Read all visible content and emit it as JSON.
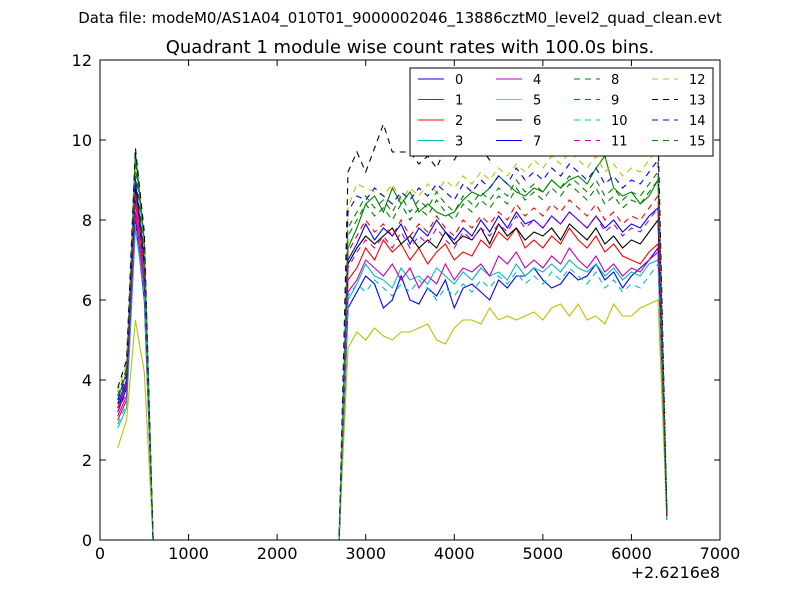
{
  "figure": {
    "suptitle": "Data file: modeM0/AS1A04_010T01_9000002046_13886cztM0_level2_quad_clean.evt"
  },
  "chart_data": {
    "type": "line",
    "title": "Quadrant 1 module wise count rates with 100.0s bins.",
    "xlabel": "",
    "ylabel": "",
    "x_offset_label": "+2.6216e8",
    "xlim": [
      0,
      7000
    ],
    "ylim": [
      0,
      12
    ],
    "x_ticks": [
      0,
      1000,
      2000,
      3000,
      4000,
      5000,
      6000,
      7000
    ],
    "x_tick_labels": [
      "0",
      "1000",
      "2000",
      "3000",
      "4000",
      "5000",
      "6000",
      "7000"
    ],
    "y_ticks": [
      0,
      2,
      4,
      6,
      8,
      10,
      12
    ],
    "y_tick_labels": [
      "0",
      "2",
      "4",
      "6",
      "8",
      "10",
      "12"
    ],
    "grid": false,
    "legend_position": "top-right",
    "legend_columns": 4,
    "x": [
      200,
      300,
      400,
      500,
      600,
      700,
      800,
      900,
      1000,
      1100,
      1200,
      1300,
      1400,
      1500,
      1600,
      1700,
      1800,
      1900,
      2000,
      2100,
      2200,
      2300,
      2400,
      2500,
      2600,
      2700,
      2800,
      2900,
      3000,
      3100,
      3200,
      3300,
      3400,
      3500,
      3600,
      3700,
      3800,
      3900,
      4000,
      4100,
      4200,
      4300,
      4400,
      4500,
      4600,
      4700,
      4800,
      4900,
      5000,
      5100,
      5200,
      5300,
      5400,
      5500,
      5600,
      5700,
      5800,
      5900,
      6000,
      6100,
      6200,
      6300,
      6400
    ],
    "series": [
      {
        "name": "0",
        "color": "#0000ff",
        "dash": "solid",
        "values": [
          3.2,
          3.8,
          8.0,
          6.0,
          0,
          0,
          0,
          0,
          0,
          0,
          0,
          0,
          0,
          0,
          0,
          0,
          0,
          0,
          0,
          0,
          0,
          0,
          0,
          0,
          0,
          0,
          5.8,
          6.2,
          6.6,
          6.4,
          5.8,
          6.0,
          6.6,
          6.0,
          5.9,
          6.3,
          6.1,
          6.5,
          5.8,
          6.3,
          6.4,
          6.2,
          6.0,
          6.5,
          6.3,
          6.6,
          6.6,
          6.8,
          6.5,
          6.3,
          6.4,
          6.7,
          6.5,
          6.6,
          6.9,
          6.5,
          6.7,
          6.3,
          6.6,
          6.8,
          7.0,
          7.3,
          0.5
        ]
      },
      {
        "name": "1",
        "color": "#008000",
        "dash": "solid",
        "values": [
          3.5,
          4.2,
          9.7,
          7.5,
          0,
          0,
          0,
          0,
          0,
          0,
          0,
          0,
          0,
          0,
          0,
          0,
          0,
          0,
          0,
          0,
          0,
          0,
          0,
          0,
          0,
          0,
          7.3,
          7.8,
          8.4,
          8.6,
          8.2,
          8.8,
          8.4,
          8.7,
          8.2,
          8.4,
          8.2,
          8.1,
          8.2,
          8.5,
          8.7,
          8.6,
          8.8,
          9.1,
          8.9,
          8.7,
          8.6,
          8.8,
          8.7,
          9.0,
          8.8,
          9.0,
          9.1,
          8.9,
          9.3,
          9.6,
          8.8,
          8.6,
          8.7,
          8.4,
          8.6,
          9.0,
          0.6
        ]
      },
      {
        "name": "2",
        "color": "#ff0000",
        "dash": "solid",
        "values": [
          3.0,
          3.5,
          8.5,
          6.5,
          0,
          0,
          0,
          0,
          0,
          0,
          0,
          0,
          0,
          0,
          0,
          0,
          0,
          0,
          0,
          0,
          0,
          0,
          0,
          0,
          0,
          0,
          6.5,
          6.8,
          7.3,
          7.0,
          7.5,
          7.2,
          7.4,
          7.0,
          7.3,
          6.9,
          7.2,
          7.4,
          7.0,
          7.2,
          7.1,
          7.5,
          7.3,
          7.7,
          7.5,
          7.8,
          7.3,
          7.5,
          7.3,
          7.6,
          7.4,
          7.8,
          7.5,
          7.3,
          7.6,
          7.2,
          7.4,
          7.1,
          7.0,
          6.9,
          7.2,
          7.4,
          0.6
        ]
      },
      {
        "name": "3",
        "color": "#00bfbf",
        "dash": "solid",
        "values": [
          2.8,
          3.3,
          7.8,
          6.2,
          0,
          0,
          0,
          0,
          0,
          0,
          0,
          0,
          0,
          0,
          0,
          0,
          0,
          0,
          0,
          0,
          0,
          0,
          0,
          0,
          0,
          0,
          6.0,
          6.4,
          6.9,
          6.6,
          6.5,
          6.3,
          6.8,
          6.5,
          6.6,
          6.4,
          6.8,
          6.6,
          6.4,
          6.7,
          6.5,
          6.8,
          6.6,
          6.7,
          6.5,
          6.9,
          6.6,
          6.8,
          6.7,
          6.9,
          6.7,
          7.0,
          6.8,
          6.7,
          6.9,
          6.6,
          6.8,
          6.5,
          6.7,
          6.6,
          6.9,
          7.0,
          0.5
        ]
      },
      {
        "name": "4",
        "color": "#bf00bf",
        "dash": "solid",
        "values": [
          3.1,
          3.6,
          8.2,
          6.3,
          0,
          0,
          0,
          0,
          0,
          0,
          0,
          0,
          0,
          0,
          0,
          0,
          0,
          0,
          0,
          0,
          0,
          0,
          0,
          0,
          0,
          0,
          6.2,
          6.5,
          7.0,
          6.8,
          6.6,
          6.9,
          6.5,
          6.8,
          6.3,
          6.6,
          6.4,
          6.9,
          6.5,
          6.8,
          6.7,
          6.9,
          6.6,
          7.1,
          6.9,
          7.2,
          6.8,
          7.0,
          6.8,
          7.1,
          6.9,
          7.3,
          7.0,
          6.8,
          7.1,
          6.7,
          6.9,
          6.6,
          6.8,
          6.7,
          7.0,
          7.2,
          0.6
        ]
      },
      {
        "name": "5",
        "color": "#bfbf00",
        "dash": "solid",
        "values": [
          2.3,
          3.0,
          5.5,
          4.2,
          0,
          0,
          0,
          0,
          0,
          0,
          0,
          0,
          0,
          0,
          0,
          0,
          0,
          0,
          0,
          0,
          0,
          0,
          0,
          0,
          0,
          0,
          4.8,
          5.2,
          5.0,
          5.3,
          5.1,
          5.0,
          5.2,
          5.2,
          5.3,
          5.4,
          5.0,
          4.9,
          5.3,
          5.5,
          5.5,
          5.4,
          5.8,
          5.5,
          5.6,
          5.5,
          5.6,
          5.7,
          5.5,
          5.8,
          5.9,
          5.6,
          5.9,
          5.5,
          5.6,
          5.4,
          5.9,
          5.6,
          5.6,
          5.8,
          5.9,
          6.0,
          0.5
        ]
      },
      {
        "name": "6",
        "color": "#000000",
        "dash": "solid",
        "values": [
          3.3,
          3.9,
          8.8,
          6.8,
          0,
          0,
          0,
          0,
          0,
          0,
          0,
          0,
          0,
          0,
          0,
          0,
          0,
          0,
          0,
          0,
          0,
          0,
          0,
          0,
          0,
          0,
          6.9,
          7.3,
          7.6,
          7.4,
          7.6,
          7.8,
          7.4,
          7.6,
          7.3,
          7.5,
          7.3,
          7.7,
          7.4,
          7.6,
          7.5,
          7.8,
          7.4,
          7.9,
          7.6,
          7.8,
          7.5,
          7.7,
          7.6,
          7.8,
          7.5,
          7.9,
          7.7,
          7.5,
          7.8,
          7.4,
          7.6,
          7.3,
          7.5,
          7.4,
          7.7,
          8.0,
          0.6
        ]
      },
      {
        "name": "7",
        "color": "#0000ff",
        "dash": "solid",
        "values": [
          3.4,
          4.0,
          9.0,
          7.0,
          0,
          0,
          0,
          0,
          0,
          0,
          0,
          0,
          0,
          0,
          0,
          0,
          0,
          0,
          0,
          0,
          0,
          0,
          0,
          0,
          0,
          0,
          7.0,
          7.4,
          7.9,
          7.5,
          7.8,
          7.6,
          7.9,
          7.4,
          7.8,
          7.6,
          8.0,
          7.7,
          7.5,
          7.8,
          7.6,
          8.0,
          7.7,
          8.1,
          7.8,
          8.2,
          7.9,
          8.0,
          7.8,
          8.1,
          7.9,
          8.2,
          8.0,
          7.8,
          8.1,
          7.8,
          8.0,
          7.7,
          7.9,
          7.8,
          8.1,
          8.3,
          0.6
        ]
      },
      {
        "name": "8",
        "color": "#008000",
        "dash": "dashed",
        "values": [
          3.6,
          4.3,
          9.5,
          7.4,
          0,
          0,
          0,
          0,
          0,
          0,
          0,
          0,
          0,
          0,
          0,
          0,
          0,
          0,
          0,
          0,
          0,
          0,
          0,
          0,
          0,
          0,
          7.6,
          8.0,
          8.4,
          8.1,
          8.3,
          8.0,
          8.4,
          8.0,
          8.3,
          8.1,
          8.5,
          8.2,
          8.0,
          8.4,
          8.2,
          8.5,
          8.3,
          8.6,
          8.4,
          8.8,
          8.5,
          8.7,
          8.5,
          8.8,
          8.6,
          8.9,
          8.7,
          8.5,
          8.8,
          8.4,
          8.6,
          8.3,
          8.5,
          8.4,
          8.7,
          9.0,
          0.6
        ]
      },
      {
        "name": "9",
        "color": "#ff0000",
        "dash": "dashed",
        "values": [
          3.3,
          3.9,
          8.7,
          6.9,
          0,
          0,
          0,
          0,
          0,
          0,
          0,
          0,
          0,
          0,
          0,
          0,
          0,
          0,
          0,
          0,
          0,
          0,
          0,
          0,
          0,
          0,
          7.2,
          7.6,
          8.0,
          7.7,
          7.9,
          7.6,
          8.0,
          7.6,
          7.9,
          7.7,
          8.1,
          7.8,
          7.6,
          8.0,
          7.8,
          8.1,
          7.9,
          8.2,
          8.0,
          8.4,
          8.1,
          8.3,
          8.1,
          8.4,
          8.2,
          8.5,
          8.3,
          8.1,
          8.4,
          8.0,
          8.2,
          7.9,
          8.1,
          8.0,
          8.3,
          8.6,
          0.6
        ]
      },
      {
        "name": "10",
        "color": "#00bfbf",
        "dash": "dashed",
        "values": [
          2.9,
          3.4,
          7.9,
          6.1,
          0,
          0,
          0,
          0,
          0,
          0,
          0,
          0,
          0,
          0,
          0,
          0,
          0,
          0,
          0,
          0,
          0,
          0,
          0,
          0,
          0,
          0,
          6.1,
          6.4,
          6.2,
          6.5,
          6.3,
          6.1,
          6.4,
          6.2,
          6.5,
          6.3,
          6.0,
          6.3,
          6.1,
          6.4,
          6.2,
          6.5,
          6.3,
          6.6,
          6.4,
          6.7,
          6.4,
          6.6,
          6.4,
          6.7,
          6.5,
          6.8,
          6.6,
          6.4,
          6.7,
          6.3,
          6.5,
          6.2,
          6.4,
          6.3,
          6.6,
          6.9,
          0.5
        ]
      },
      {
        "name": "11",
        "color": "#bf00bf",
        "dash": "dashed",
        "values": [
          3.2,
          3.7,
          8.4,
          6.6,
          0,
          0,
          0,
          0,
          0,
          0,
          0,
          0,
          0,
          0,
          0,
          0,
          0,
          0,
          0,
          0,
          0,
          0,
          0,
          0,
          0,
          0,
          6.8,
          7.2,
          7.5,
          7.3,
          7.6,
          7.3,
          7.7,
          7.3,
          7.6,
          7.4,
          7.8,
          7.5,
          7.3,
          7.7,
          7.5,
          7.8,
          7.6,
          7.9,
          7.7,
          8.1,
          7.8,
          8.0,
          7.8,
          8.1,
          7.9,
          8.2,
          8.0,
          7.8,
          8.1,
          7.7,
          7.9,
          7.6,
          7.8,
          7.7,
          8.0,
          8.3,
          0.6
        ]
      },
      {
        "name": "12",
        "color": "#bfbf00",
        "dash": "dashed",
        "values": [
          3.7,
          4.4,
          9.3,
          7.3,
          0,
          0,
          0,
          0,
          0,
          0,
          0,
          0,
          0,
          0,
          0,
          0,
          0,
          0,
          0,
          0,
          0,
          0,
          0,
          0,
          0,
          0,
          8.3,
          8.9,
          8.8,
          8.7,
          8.6,
          8.9,
          8.5,
          8.8,
          8.6,
          8.9,
          8.7,
          9.0,
          8.8,
          9.1,
          8.9,
          9.2,
          9.0,
          9.3,
          9.1,
          9.4,
          9.2,
          9.5,
          9.3,
          9.6,
          9.4,
          9.7,
          9.5,
          9.3,
          9.6,
          9.2,
          9.4,
          9.1,
          9.3,
          9.2,
          9.5,
          9.8,
          0.7
        ]
      },
      {
        "name": "13",
        "color": "#000000",
        "dash": "dashed",
        "values": [
          3.8,
          4.5,
          9.8,
          7.7,
          0,
          0,
          0,
          0,
          0,
          0,
          0,
          0,
          0,
          0,
          0,
          0,
          0,
          0,
          0,
          0,
          0,
          0,
          0,
          0,
          0,
          0,
          9.2,
          9.7,
          9.2,
          9.8,
          10.4,
          9.7,
          9.7,
          9.7,
          9.4,
          9.6,
          9.3,
          9.8,
          9.5,
          9.9,
          9.6,
          9.8,
          9.5,
          10.0,
          9.7,
          10.1,
          9.8,
          10.0,
          9.8,
          10.1,
          9.9,
          10.2,
          10.0,
          9.8,
          10.1,
          9.7,
          9.9,
          9.6,
          9.8,
          9.7,
          10.0,
          10.2,
          0.7
        ]
      },
      {
        "name": "14",
        "color": "#0000ff",
        "dash": "dashed",
        "values": [
          3.5,
          4.1,
          9.1,
          7.1,
          0,
          0,
          0,
          0,
          0,
          0,
          0,
          0,
          0,
          0,
          0,
          0,
          0,
          0,
          0,
          0,
          0,
          0,
          0,
          0,
          0,
          0,
          8.2,
          8.6,
          8.5,
          8.8,
          8.6,
          8.4,
          8.7,
          8.5,
          8.8,
          8.6,
          8.9,
          8.7,
          8.5,
          8.9,
          8.7,
          9.0,
          8.8,
          9.1,
          8.9,
          9.3,
          9.0,
          9.2,
          9.0,
          9.3,
          9.1,
          9.4,
          9.2,
          9.0,
          9.3,
          8.9,
          9.1,
          8.8,
          9.0,
          8.9,
          9.2,
          9.5,
          0.6
        ]
      },
      {
        "name": "15",
        "color": "#008000",
        "dash": "dashed",
        "values": [
          3.6,
          4.2,
          9.4,
          7.2,
          0,
          0,
          0,
          0,
          0,
          0,
          0,
          0,
          0,
          0,
          0,
          0,
          0,
          0,
          0,
          0,
          0,
          0,
          0,
          0,
          0,
          0,
          7.8,
          8.2,
          8.6,
          8.3,
          8.5,
          8.2,
          8.6,
          8.2,
          8.5,
          8.3,
          8.7,
          8.4,
          8.2,
          8.6,
          8.4,
          8.7,
          8.5,
          8.8,
          8.6,
          9.0,
          8.7,
          8.9,
          8.7,
          9.0,
          8.8,
          9.1,
          8.9,
          8.7,
          9.0,
          8.6,
          8.8,
          8.5,
          8.7,
          8.6,
          8.9,
          9.2,
          0.6
        ]
      }
    ]
  }
}
